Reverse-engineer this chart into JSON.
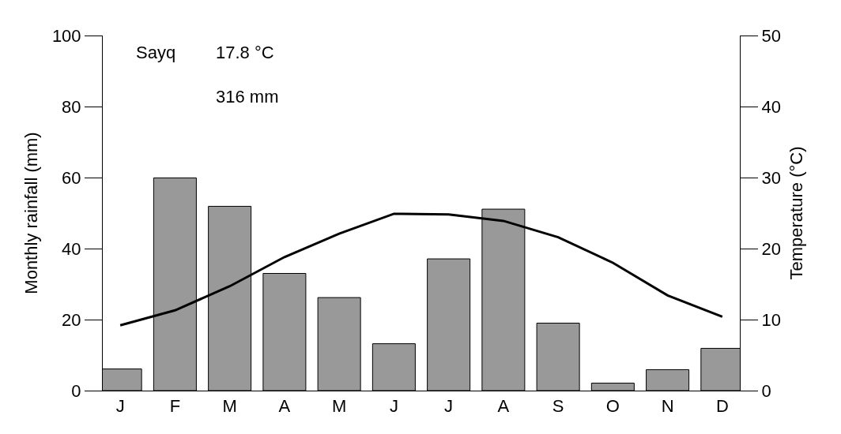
{
  "chart_data": {
    "type": "bar",
    "categories": [
      "J",
      "F",
      "M",
      "A",
      "M",
      "J",
      "J",
      "A",
      "S",
      "O",
      "N",
      "D"
    ],
    "series": [
      {
        "color": "#999999",
        "values": [
          6.1,
          59.9,
          51.9,
          33.0,
          26.2,
          13.2,
          37.1,
          51.1,
          19.0,
          2.1,
          5.9,
          11.9
        ]
      },
      {
        "type": "line",
        "axis": "y2",
        "color": "#000000",
        "values": [
          9.2,
          11.3,
          14.7,
          18.8,
          22.1,
          24.9,
          24.8,
          23.9,
          21.6,
          18.0,
          13.4,
          10.4
        ]
      }
    ],
    "ylabel": "Monthly rainfall (mm)",
    "y2label": "Temperature (°C)",
    "ylim": [
      0,
      100
    ],
    "yticks": [
      0,
      20,
      40,
      60,
      80,
      100
    ],
    "y2lim": [
      0,
      50
    ],
    "y2ticks": [
      0,
      10,
      20,
      30,
      40,
      50
    ],
    "annotations": [
      "Sayq",
      "17.8 °C",
      "316 mm"
    ],
    "grid": false,
    "legend": false,
    "marker": "none",
    "line_style": "solid"
  }
}
